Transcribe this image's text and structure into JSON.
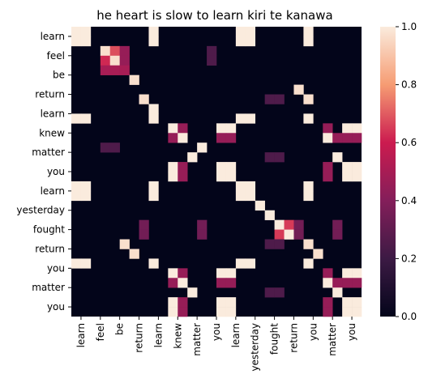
{
  "chart_data": {
    "type": "heatmap",
    "title": "he heart is slow to learn   kiri te kanawa",
    "x_labels": [
      "learn",
      "feel",
      "be",
      "return",
      "learn",
      "knew",
      "matter",
      "you",
      "learn",
      "yesterday",
      "fought",
      "return",
      "you",
      "matter",
      "you"
    ],
    "y_labels": [
      "learn",
      "feel",
      "be",
      "return",
      "learn",
      "knew",
      "matter",
      "you",
      "learn",
      "yesterday",
      "fought",
      "return",
      "you",
      "matter",
      "you"
    ],
    "grid_columns": 30,
    "grid_rows": 30,
    "colorbar": {
      "min": 0.0,
      "max": 1.0,
      "ticks": [
        "0.0",
        "0.2",
        "0.4",
        "0.6",
        "0.8",
        "1.0"
      ]
    },
    "cells": [
      {
        "r": 0,
        "c": 0,
        "v": 1
      },
      {
        "r": 0,
        "c": 1,
        "v": 1
      },
      {
        "r": 0,
        "c": 8,
        "v": 1
      },
      {
        "r": 0,
        "c": 17,
        "v": 1
      },
      {
        "r": 0,
        "c": 18,
        "v": 1
      },
      {
        "r": 0,
        "c": 24,
        "v": 1
      },
      {
        "r": 1,
        "c": 0,
        "v": 1
      },
      {
        "r": 1,
        "c": 1,
        "v": 1
      },
      {
        "r": 1,
        "c": 8,
        "v": 1
      },
      {
        "r": 1,
        "c": 17,
        "v": 1
      },
      {
        "r": 1,
        "c": 18,
        "v": 1
      },
      {
        "r": 1,
        "c": 24,
        "v": 1
      },
      {
        "r": 2,
        "c": 3,
        "v": 0.97
      },
      {
        "r": 2,
        "c": 4,
        "v": 0.68
      },
      {
        "r": 2,
        "c": 5,
        "v": 0.45
      },
      {
        "r": 2,
        "c": 14,
        "v": 0.25
      },
      {
        "r": 3,
        "c": 3,
        "v": 0.62
      },
      {
        "r": 3,
        "c": 4,
        "v": 0.97
      },
      {
        "r": 3,
        "c": 5,
        "v": 0.45
      },
      {
        "r": 3,
        "c": 14,
        "v": 0.25
      },
      {
        "r": 4,
        "c": 3,
        "v": 0.5
      },
      {
        "r": 4,
        "c": 4,
        "v": 0.5
      },
      {
        "r": 4,
        "c": 5,
        "v": 0.5
      },
      {
        "r": 5,
        "c": 6,
        "v": 0.97
      },
      {
        "r": 6,
        "c": 23,
        "v": 0.97
      },
      {
        "r": 7,
        "c": 7,
        "v": 0.97
      },
      {
        "r": 7,
        "c": 20,
        "v": 0.25
      },
      {
        "r": 7,
        "c": 21,
        "v": 0.25
      },
      {
        "r": 7,
        "c": 24,
        "v": 0.97
      },
      {
        "r": 8,
        "c": 8,
        "v": 1
      },
      {
        "r": 9,
        "c": 0,
        "v": 1
      },
      {
        "r": 9,
        "c": 1,
        "v": 1
      },
      {
        "r": 9,
        "c": 8,
        "v": 1
      },
      {
        "r": 9,
        "c": 17,
        "v": 1
      },
      {
        "r": 9,
        "c": 18,
        "v": 1
      },
      {
        "r": 9,
        "c": 24,
        "v": 1
      },
      {
        "r": 10,
        "c": 10,
        "v": 1
      },
      {
        "r": 10,
        "c": 11,
        "v": 0.45
      },
      {
        "r": 10,
        "c": 15,
        "v": 1
      },
      {
        "r": 10,
        "c": 16,
        "v": 1
      },
      {
        "r": 10,
        "c": 26,
        "v": 0.45
      },
      {
        "r": 10,
        "c": 28,
        "v": 1
      },
      {
        "r": 10,
        "c": 29,
        "v": 1
      },
      {
        "r": 11,
        "c": 10,
        "v": 0.45
      },
      {
        "r": 11,
        "c": 11,
        "v": 1
      },
      {
        "r": 11,
        "c": 15,
        "v": 0.45
      },
      {
        "r": 11,
        "c": 16,
        "v": 0.45
      },
      {
        "r": 11,
        "c": 26,
        "v": 1
      },
      {
        "r": 11,
        "c": 27,
        "v": 0.45
      },
      {
        "r": 11,
        "c": 28,
        "v": 0.45
      },
      {
        "r": 11,
        "c": 29,
        "v": 0.45
      },
      {
        "r": 12,
        "c": 3,
        "v": 0.25
      },
      {
        "r": 12,
        "c": 4,
        "v": 0.25
      },
      {
        "r": 12,
        "c": 13,
        "v": 1
      },
      {
        "r": 13,
        "c": 12,
        "v": 1
      },
      {
        "r": 13,
        "c": 20,
        "v": 0.25
      },
      {
        "r": 13,
        "c": 21,
        "v": 0.25
      },
      {
        "r": 13,
        "c": 27,
        "v": 1
      },
      {
        "r": 14,
        "c": 10,
        "v": 1
      },
      {
        "r": 14,
        "c": 11,
        "v": 0.45
      },
      {
        "r": 14,
        "c": 15,
        "v": 1
      },
      {
        "r": 14,
        "c": 16,
        "v": 1
      },
      {
        "r": 14,
        "c": 26,
        "v": 0.45
      },
      {
        "r": 14,
        "c": 28,
        "v": 1
      },
      {
        "r": 14,
        "c": 29,
        "v": 1
      },
      {
        "r": 15,
        "c": 10,
        "v": 1
      },
      {
        "r": 15,
        "c": 11,
        "v": 0.45
      },
      {
        "r": 15,
        "c": 15,
        "v": 1
      },
      {
        "r": 15,
        "c": 16,
        "v": 1
      },
      {
        "r": 15,
        "c": 26,
        "v": 0.45
      },
      {
        "r": 15,
        "c": 28,
        "v": 1
      },
      {
        "r": 15,
        "c": 29,
        "v": 1
      },
      {
        "r": 16,
        "c": 0,
        "v": 1
      },
      {
        "r": 16,
        "c": 1,
        "v": 1
      },
      {
        "r": 16,
        "c": 8,
        "v": 1
      },
      {
        "r": 16,
        "c": 17,
        "v": 1
      },
      {
        "r": 16,
        "c": 18,
        "v": 1
      },
      {
        "r": 16,
        "c": 24,
        "v": 1
      },
      {
        "r": 17,
        "c": 0,
        "v": 1
      },
      {
        "r": 17,
        "c": 1,
        "v": 1
      },
      {
        "r": 17,
        "c": 8,
        "v": 1
      },
      {
        "r": 17,
        "c": 17,
        "v": 1
      },
      {
        "r": 17,
        "c": 18,
        "v": 1
      },
      {
        "r": 17,
        "c": 24,
        "v": 1
      },
      {
        "r": 18,
        "c": 19,
        "v": 1
      },
      {
        "r": 19,
        "c": 20,
        "v": 1
      },
      {
        "r": 20,
        "c": 7,
        "v": 0.35
      },
      {
        "r": 20,
        "c": 13,
        "v": 0.35
      },
      {
        "r": 20,
        "c": 21,
        "v": 1
      },
      {
        "r": 20,
        "c": 22,
        "v": 0.65
      },
      {
        "r": 20,
        "c": 23,
        "v": 0.35
      },
      {
        "r": 20,
        "c": 27,
        "v": 0.35
      },
      {
        "r": 21,
        "c": 7,
        "v": 0.35
      },
      {
        "r": 21,
        "c": 13,
        "v": 0.35
      },
      {
        "r": 21,
        "c": 21,
        "v": 0.65
      },
      {
        "r": 21,
        "c": 22,
        "v": 1
      },
      {
        "r": 21,
        "c": 23,
        "v": 0.35
      },
      {
        "r": 21,
        "c": 27,
        "v": 0.35
      },
      {
        "r": 22,
        "c": 5,
        "v": 0.97
      },
      {
        "r": 22,
        "c": 20,
        "v": 0.25
      },
      {
        "r": 22,
        "c": 21,
        "v": 0.25
      },
      {
        "r": 22,
        "c": 24,
        "v": 0.97
      },
      {
        "r": 23,
        "c": 6,
        "v": 0.97
      },
      {
        "r": 23,
        "c": 25,
        "v": 0.97
      },
      {
        "r": 24,
        "c": 0,
        "v": 1
      },
      {
        "r": 24,
        "c": 1,
        "v": 1
      },
      {
        "r": 24,
        "c": 8,
        "v": 1
      },
      {
        "r": 24,
        "c": 17,
        "v": 1
      },
      {
        "r": 24,
        "c": 18,
        "v": 1
      },
      {
        "r": 24,
        "c": 24,
        "v": 1
      },
      {
        "r": 25,
        "c": 10,
        "v": 1
      },
      {
        "r": 25,
        "c": 11,
        "v": 0.45
      },
      {
        "r": 25,
        "c": 15,
        "v": 1
      },
      {
        "r": 25,
        "c": 16,
        "v": 1
      },
      {
        "r": 25,
        "c": 26,
        "v": 0.45
      },
      {
        "r": 25,
        "c": 28,
        "v": 1
      },
      {
        "r": 25,
        "c": 29,
        "v": 1
      },
      {
        "r": 26,
        "c": 10,
        "v": 0.45
      },
      {
        "r": 26,
        "c": 11,
        "v": 1
      },
      {
        "r": 26,
        "c": 15,
        "v": 0.45
      },
      {
        "r": 26,
        "c": 16,
        "v": 0.45
      },
      {
        "r": 26,
        "c": 26,
        "v": 1
      },
      {
        "r": 26,
        "c": 27,
        "v": 0.45
      },
      {
        "r": 26,
        "c": 28,
        "v": 0.45
      },
      {
        "r": 26,
        "c": 29,
        "v": 0.45
      },
      {
        "r": 27,
        "c": 12,
        "v": 1
      },
      {
        "r": 27,
        "c": 20,
        "v": 0.25
      },
      {
        "r": 27,
        "c": 21,
        "v": 0.25
      },
      {
        "r": 27,
        "c": 27,
        "v": 1
      },
      {
        "r": 28,
        "c": 10,
        "v": 1
      },
      {
        "r": 28,
        "c": 11,
        "v": 0.45
      },
      {
        "r": 28,
        "c": 15,
        "v": 1
      },
      {
        "r": 28,
        "c": 16,
        "v": 1
      },
      {
        "r": 28,
        "c": 26,
        "v": 0.45
      },
      {
        "r": 28,
        "c": 28,
        "v": 1
      },
      {
        "r": 28,
        "c": 29,
        "v": 1
      },
      {
        "r": 29,
        "c": 10,
        "v": 1
      },
      {
        "r": 29,
        "c": 11,
        "v": 0.45
      },
      {
        "r": 29,
        "c": 15,
        "v": 1
      },
      {
        "r": 29,
        "c": 16,
        "v": 1
      },
      {
        "r": 29,
        "c": 26,
        "v": 0.45
      },
      {
        "r": 29,
        "c": 28,
        "v": 1
      },
      {
        "r": 29,
        "c": 29,
        "v": 1
      }
    ]
  }
}
